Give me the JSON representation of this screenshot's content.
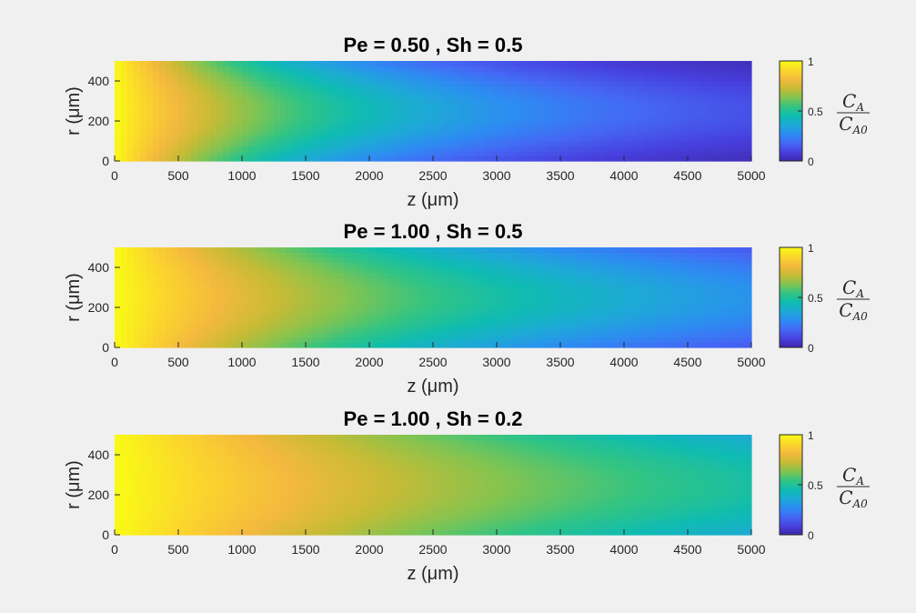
{
  "chart_data": [
    {
      "type": "heatmap",
      "title": "Pe = 0.50 ,  Sh = 0.5",
      "pe": 0.5,
      "sh": 0.5,
      "xlabel": "z (μm)",
      "ylabel": "r (μm)",
      "xlim": [
        0,
        5000
      ],
      "ylim": [
        0,
        500
      ],
      "xticks": [
        "0",
        "500",
        "1000",
        "1500",
        "2000",
        "2500",
        "3000",
        "3500",
        "4000",
        "4500",
        "5000"
      ],
      "yticks": [
        "0",
        "200",
        "400"
      ],
      "colorbar": {
        "label_num": "C",
        "label_num_sub": "A",
        "label_den": "C",
        "label_den_sub": "A0",
        "ticks": [
          "0",
          "0.5",
          "1"
        ],
        "clim": [
          0,
          1
        ]
      }
    },
    {
      "type": "heatmap",
      "title": "Pe = 1.00 ,  Sh = 0.5",
      "pe": 1.0,
      "sh": 0.5,
      "xlabel": "z (μm)",
      "ylabel": "r (μm)",
      "xlim": [
        0,
        5000
      ],
      "ylim": [
        0,
        500
      ],
      "xticks": [
        "0",
        "500",
        "1000",
        "1500",
        "2000",
        "2500",
        "3000",
        "3500",
        "4000",
        "4500",
        "5000"
      ],
      "yticks": [
        "0",
        "200",
        "400"
      ],
      "colorbar": {
        "label_num": "C",
        "label_num_sub": "A",
        "label_den": "C",
        "label_den_sub": "A0",
        "ticks": [
          "0",
          "0.5",
          "1"
        ],
        "clim": [
          0,
          1
        ]
      }
    },
    {
      "type": "heatmap",
      "title": "Pe = 1.00 ,  Sh = 0.2",
      "pe": 1.0,
      "sh": 0.2,
      "xlabel": "z (μm)",
      "ylabel": "r (μm)",
      "xlim": [
        0,
        5000
      ],
      "ylim": [
        0,
        500
      ],
      "xticks": [
        "0",
        "500",
        "1000",
        "1500",
        "2000",
        "2500",
        "3000",
        "3500",
        "4000",
        "4500",
        "5000"
      ],
      "yticks": [
        "0",
        "200",
        "400"
      ],
      "colorbar": {
        "label_num": "C",
        "label_num_sub": "A",
        "label_den": "C",
        "label_den_sub": "A0",
        "ticks": [
          "0",
          "0.5",
          "1"
        ],
        "clim": [
          0,
          1
        ]
      }
    }
  ],
  "colormap": [
    "#3e26a8",
    "#4740de",
    "#4567f5",
    "#2d8cf2",
    "#1da9d6",
    "#0fbcb1",
    "#32c483",
    "#81c451",
    "#c6bb35",
    "#f4b93e",
    "#fbd62c",
    "#f9fb15"
  ]
}
